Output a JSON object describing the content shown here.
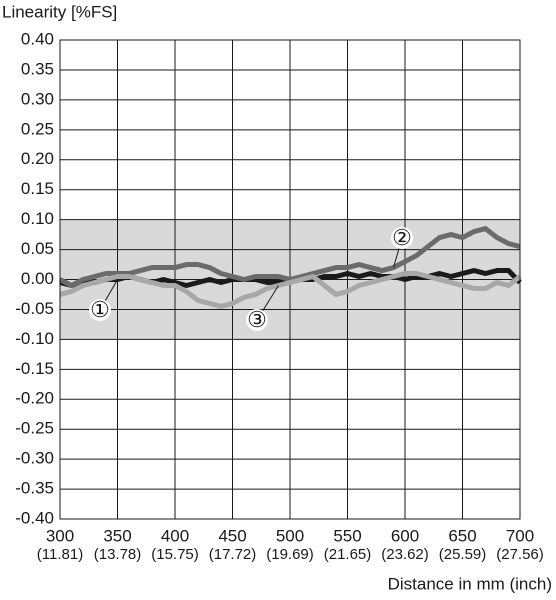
{
  "chart_data": {
    "type": "line",
    "y_label": "Linearity [%FS]",
    "x_label": "Distance in mm (inch)",
    "x": [
      300,
      310,
      320,
      330,
      340,
      350,
      360,
      370,
      380,
      390,
      400,
      410,
      420,
      430,
      440,
      450,
      460,
      470,
      480,
      490,
      500,
      510,
      520,
      530,
      540,
      550,
      560,
      570,
      580,
      590,
      600,
      610,
      620,
      630,
      640,
      650,
      660,
      670,
      680,
      690,
      700
    ],
    "series": [
      {
        "name": "①",
        "color": "#1a1a1a",
        "values": [
          -0.005,
          -0.01,
          -0.005,
          -0.005,
          0,
          0,
          0.005,
          0,
          -0.005,
          0,
          -0.005,
          -0.01,
          -0.005,
          0,
          -0.005,
          0,
          0,
          0,
          -0.005,
          -0.005,
          0,
          0,
          0,
          0.005,
          0.005,
          0.01,
          0.005,
          0.01,
          0.005,
          0.005,
          0,
          0.005,
          0.005,
          0.01,
          0.005,
          0.01,
          0.015,
          0.01,
          0.015,
          0.015,
          -0.005
        ]
      },
      {
        "name": "②",
        "color": "#6b6b6b",
        "values": [
          0,
          -0.01,
          0,
          0.005,
          0.01,
          0.01,
          0.01,
          0.015,
          0.02,
          0.02,
          0.02,
          0.025,
          0.025,
          0.02,
          0.01,
          0.005,
          0,
          0.005,
          0.005,
          0.005,
          0,
          0.005,
          0.01,
          0.015,
          0.02,
          0.02,
          0.025,
          0.02,
          0.015,
          0.02,
          0.03,
          0.04,
          0.055,
          0.07,
          0.075,
          0.07,
          0.08,
          0.085,
          0.07,
          0.06,
          0.055
        ]
      },
      {
        "name": "③",
        "color": "#a8a8a8",
        "values": [
          -0.025,
          -0.02,
          -0.01,
          -0.005,
          0,
          0.005,
          0.005,
          0,
          -0.005,
          -0.01,
          -0.01,
          -0.02,
          -0.035,
          -0.04,
          -0.045,
          -0.04,
          -0.03,
          -0.025,
          -0.015,
          -0.01,
          -0.005,
          0,
          0.005,
          -0.01,
          -0.025,
          -0.02,
          -0.01,
          -0.005,
          0,
          0.005,
          0.01,
          0.01,
          0.005,
          0,
          -0.005,
          -0.01,
          -0.015,
          -0.015,
          -0.005,
          -0.01,
          0.005
        ]
      }
    ],
    "band": {
      "range": [
        -0.1,
        0.1
      ],
      "color": "#d9d9d9"
    },
    "xlim": [
      300,
      700
    ],
    "xticks": [
      300,
      350,
      400,
      450,
      500,
      550,
      600,
      650,
      700
    ],
    "x_secondary_labels": [
      "(11.81)",
      "(13.78)",
      "(15.75)",
      "(17.72)",
      "(19.69)",
      "(21.65)",
      "(23.62)",
      "(25.59)",
      "(27.56)"
    ],
    "ylim": [
      -0.4,
      0.4
    ],
    "yticks": [
      {
        "value": 0.4,
        "label": "0.40"
      },
      {
        "value": 0.35,
        "label": "0.35"
      },
      {
        "value": 0.3,
        "label": "0.30"
      },
      {
        "value": 0.25,
        "label": "0.25"
      },
      {
        "value": 0.2,
        "label": "0.20"
      },
      {
        "value": 0.15,
        "label": "0.15"
      },
      {
        "value": 0.1,
        "label": "0.10"
      },
      {
        "value": 0.05,
        "label": "0.05"
      },
      {
        "value": 0,
        "label": "0.00"
      },
      {
        "value": -0.05,
        "label": "-0.05"
      },
      {
        "value": -0.1,
        "label": "-0.10"
      },
      {
        "value": -0.15,
        "label": "-0.15"
      },
      {
        "value": -0.2,
        "label": "-0.20"
      },
      {
        "value": -0.25,
        "label": "-0.25"
      },
      {
        "value": -0.3,
        "label": "-0.30"
      },
      {
        "value": -0.35,
        "label": "-0.35"
      },
      {
        "value": -0.4,
        "label": "-0.40"
      }
    ],
    "grid": true
  }
}
